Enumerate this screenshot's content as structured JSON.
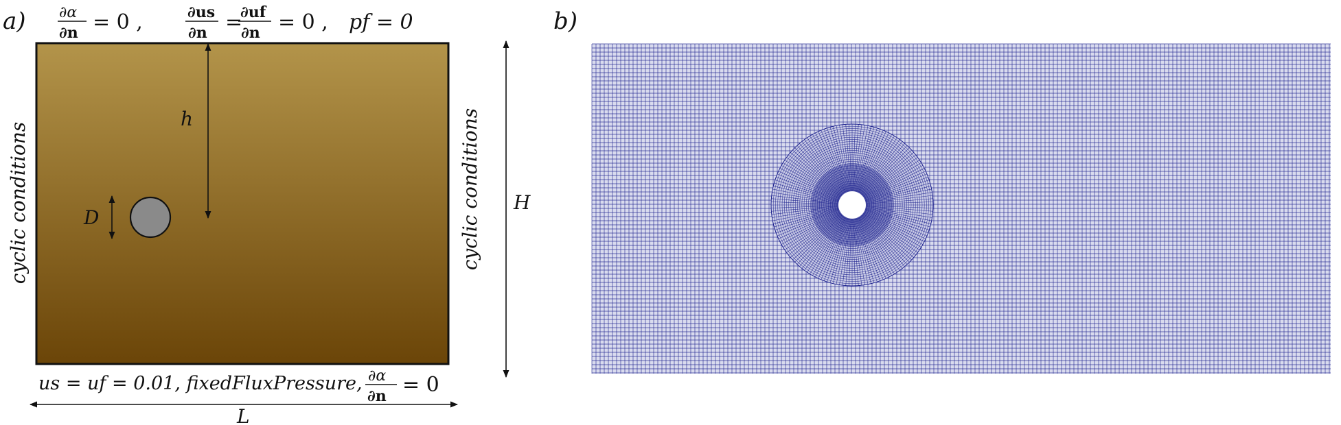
{
  "panel_a": {
    "label": "a)",
    "top_bc": {
      "dalpha_num": "∂α",
      "den": "∂n",
      "eq_zero_1": "= 0 ,",
      "dus_num": "∂us",
      "eq_mid": "=",
      "duf_num": "∂uf",
      "eq_zero_2": "= 0 ,",
      "pf": "pf = 0"
    },
    "bottom_bc": {
      "text": "us = uf = 0.01,  fixedFluxPressure,",
      "frac_num": "∂α",
      "frac_den": "∂n",
      "eq_zero": "= 0"
    },
    "left_bc": "cyclic conditions",
    "right_bc": "cyclic conditions",
    "dim_h": "h",
    "dim_D": "D",
    "dim_H": "H",
    "dim_L": "L",
    "colors": {
      "gradient_top": "#b3944a",
      "gradient_bottom": "#6b4508",
      "cylinder": "#8a8a8a"
    }
  },
  "panel_b": {
    "label": "b)",
    "colors": {
      "mesh_line": "#1a1f8c",
      "mesh_bg": "#d9dbee",
      "hole": "#ffffff"
    }
  }
}
